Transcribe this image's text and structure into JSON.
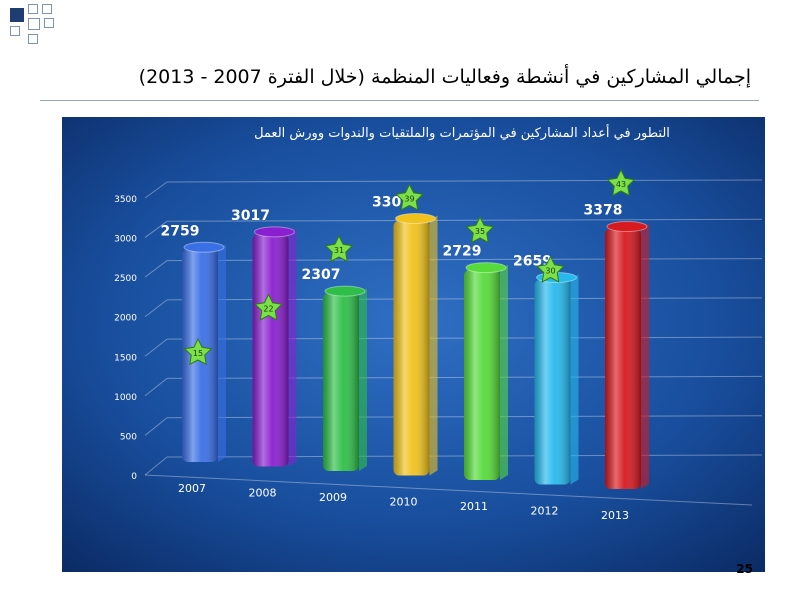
{
  "slide": {
    "title": "إجمالي المشاركين في أنشطة وفعاليات المنظمة  (خلال الفترة 2007 - 2013)",
    "page_number": "25"
  },
  "chart_data": {
    "type": "bar",
    "title": "التطور في أعداد المشاركين في المؤتمرات والملتقيات والندوات وورش العمل",
    "xlabel": "",
    "ylabel": "",
    "categories": [
      "2007",
      "2008",
      "2009",
      "2010",
      "2011",
      "2012",
      "2013"
    ],
    "series": [
      {
        "values": [
          2759,
          3017,
          2307,
          3307,
          2729,
          2659,
          3378
        ],
        "secondary_values": [
          15,
          22,
          31,
          39,
          35,
          30,
          43
        ],
        "colors": [
          "#3a6fe6",
          "#8a1fcf",
          "#2fbf48",
          "#f0c21c",
          "#56db3a",
          "#27b9ee",
          "#d71920"
        ]
      }
    ],
    "ylim": [
      0,
      3500
    ],
    "yticks": [
      0,
      500,
      1000,
      1500,
      2000,
      2500,
      3000,
      3500
    ],
    "grid": true,
    "legend": "none",
    "background": "#123e8a"
  }
}
